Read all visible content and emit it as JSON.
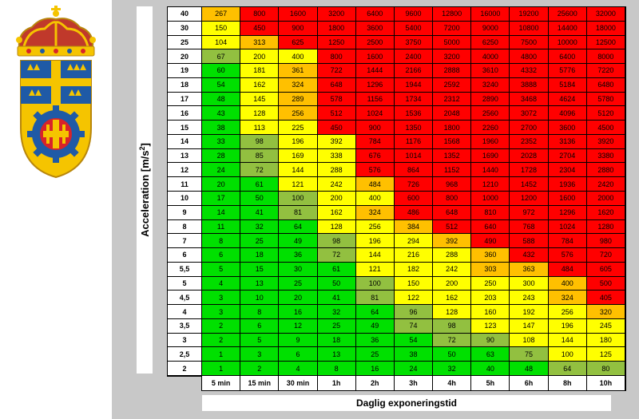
{
  "chart_data": {
    "type": "heatmap",
    "xlabel": "Daglig exponeringstid",
    "ylabel": "Acceleration [m/s",
    "ylabel_sup": "2",
    "ylabel_close": "]",
    "columns": [
      "5 min",
      "15 min",
      "30 min",
      "1h",
      "2h",
      "3h",
      "4h",
      "5h",
      "6h",
      "8h",
      "10h"
    ],
    "rows": [
      {
        "label": "40",
        "values": [
          267,
          800,
          1600,
          3200,
          6400,
          9600,
          12800,
          16000,
          19200,
          25600,
          32000
        ],
        "zones": [
          "O",
          "R",
          "R",
          "R",
          "R",
          "R",
          "R",
          "R",
          "R",
          "R",
          "R"
        ]
      },
      {
        "label": "30",
        "values": [
          150,
          450,
          900,
          1800,
          3600,
          5400,
          7200,
          9000,
          10800,
          14400,
          18000
        ],
        "zones": [
          "Y",
          "R",
          "R",
          "R",
          "R",
          "R",
          "R",
          "R",
          "R",
          "R",
          "R"
        ]
      },
      {
        "label": "25",
        "values": [
          104,
          313,
          625,
          1250,
          2500,
          3750,
          5000,
          6250,
          7500,
          10000,
          12500
        ],
        "zones": [
          "Y",
          "O",
          "R",
          "R",
          "R",
          "R",
          "R",
          "R",
          "R",
          "R",
          "R"
        ]
      },
      {
        "label": "20",
        "values": [
          67,
          200,
          400,
          800,
          1600,
          2400,
          3200,
          4000,
          4800,
          6400,
          8000
        ],
        "zones": [
          "D",
          "Y",
          "Y",
          "R",
          "R",
          "R",
          "R",
          "R",
          "R",
          "R",
          "R"
        ]
      },
      {
        "label": "19",
        "values": [
          60,
          181,
          361,
          722,
          1444,
          2166,
          2888,
          3610,
          4332,
          5776,
          7220
        ],
        "zones": [
          "G",
          "Y",
          "O",
          "R",
          "R",
          "R",
          "R",
          "R",
          "R",
          "R",
          "R"
        ]
      },
      {
        "label": "18",
        "values": [
          54,
          162,
          324,
          648,
          1296,
          1944,
          2592,
          3240,
          3888,
          5184,
          6480
        ],
        "zones": [
          "G",
          "Y",
          "O",
          "R",
          "R",
          "R",
          "R",
          "R",
          "R",
          "R",
          "R"
        ]
      },
      {
        "label": "17",
        "values": [
          48,
          145,
          289,
          578,
          1156,
          1734,
          2312,
          2890,
          3468,
          4624,
          5780
        ],
        "zones": [
          "G",
          "Y",
          "O",
          "R",
          "R",
          "R",
          "R",
          "R",
          "R",
          "R",
          "R"
        ]
      },
      {
        "label": "16",
        "values": [
          43,
          128,
          256,
          512,
          1024,
          1536,
          2048,
          2560,
          3072,
          4096,
          5120
        ],
        "zones": [
          "G",
          "Y",
          "O",
          "R",
          "R",
          "R",
          "R",
          "R",
          "R",
          "R",
          "R"
        ]
      },
      {
        "label": "15",
        "values": [
          38,
          113,
          225,
          450,
          900,
          1350,
          1800,
          2260,
          2700,
          3600,
          4500
        ],
        "zones": [
          "G",
          "Y",
          "Y",
          "R",
          "R",
          "R",
          "R",
          "R",
          "R",
          "R",
          "R"
        ]
      },
      {
        "label": "14",
        "values": [
          33,
          98,
          196,
          392,
          784,
          1176,
          1568,
          1960,
          2352,
          3136,
          3920
        ],
        "zones": [
          "G",
          "D",
          "Y",
          "Y",
          "R",
          "R",
          "R",
          "R",
          "R",
          "R",
          "R"
        ]
      },
      {
        "label": "13",
        "values": [
          28,
          85,
          169,
          338,
          676,
          1014,
          1352,
          1690,
          2028,
          2704,
          3380
        ],
        "zones": [
          "G",
          "D",
          "Y",
          "Y",
          "R",
          "R",
          "R",
          "R",
          "R",
          "R",
          "R"
        ]
      },
      {
        "label": "12",
        "values": [
          24,
          72,
          144,
          288,
          576,
          864,
          1152,
          1440,
          1728,
          2304,
          2880
        ],
        "zones": [
          "G",
          "D",
          "Y",
          "Y",
          "R",
          "R",
          "R",
          "R",
          "R",
          "R",
          "R"
        ]
      },
      {
        "label": "11",
        "values": [
          20,
          61,
          121,
          242,
          484,
          726,
          968,
          1210,
          1452,
          1936,
          2420
        ],
        "zones": [
          "G",
          "G",
          "Y",
          "Y",
          "O",
          "R",
          "R",
          "R",
          "R",
          "R",
          "R"
        ]
      },
      {
        "label": "10",
        "values": [
          17,
          50,
          100,
          200,
          400,
          600,
          800,
          1000,
          1200,
          1600,
          2000
        ],
        "zones": [
          "G",
          "G",
          "D",
          "Y",
          "Y",
          "R",
          "R",
          "R",
          "R",
          "R",
          "R"
        ]
      },
      {
        "label": "9",
        "values": [
          14,
          41,
          81,
          162,
          324,
          486,
          648,
          810,
          972,
          1296,
          1620
        ],
        "zones": [
          "G",
          "G",
          "D",
          "Y",
          "O",
          "R",
          "R",
          "R",
          "R",
          "R",
          "R"
        ]
      },
      {
        "label": "8",
        "values": [
          11,
          32,
          64,
          128,
          256,
          384,
          512,
          640,
          768,
          1024,
          1280
        ],
        "zones": [
          "G",
          "G",
          "G",
          "Y",
          "Y",
          "O",
          "R",
          "R",
          "R",
          "R",
          "R"
        ]
      },
      {
        "label": "7",
        "values": [
          8,
          25,
          49,
          98,
          196,
          294,
          392,
          490,
          588,
          784,
          980
        ],
        "zones": [
          "G",
          "G",
          "G",
          "D",
          "Y",
          "Y",
          "O",
          "R",
          "R",
          "R",
          "R"
        ]
      },
      {
        "label": "6",
        "values": [
          6,
          18,
          36,
          72,
          144,
          216,
          288,
          360,
          432,
          576,
          720
        ],
        "zones": [
          "G",
          "G",
          "G",
          "D",
          "Y",
          "Y",
          "Y",
          "O",
          "R",
          "R",
          "R"
        ]
      },
      {
        "label": "5,5",
        "values": [
          5,
          15,
          30,
          61,
          121,
          182,
          242,
          303,
          363,
          484,
          605
        ],
        "zones": [
          "G",
          "G",
          "G",
          "G",
          "Y",
          "Y",
          "Y",
          "O",
          "O",
          "R",
          "R"
        ]
      },
      {
        "label": "5",
        "values": [
          4,
          13,
          25,
          50,
          100,
          150,
          200,
          250,
          300,
          400,
          500
        ],
        "zones": [
          "G",
          "G",
          "G",
          "G",
          "D",
          "Y",
          "Y",
          "Y",
          "Y",
          "O",
          "R"
        ]
      },
      {
        "label": "4,5",
        "values": [
          3,
          10,
          20,
          41,
          81,
          122,
          162,
          203,
          243,
          324,
          405
        ],
        "zones": [
          "G",
          "G",
          "G",
          "G",
          "D",
          "Y",
          "Y",
          "Y",
          "Y",
          "O",
          "R"
        ]
      },
      {
        "label": "4",
        "values": [
          3,
          8,
          16,
          32,
          64,
          96,
          128,
          160,
          192,
          256,
          320
        ],
        "zones": [
          "G",
          "G",
          "G",
          "G",
          "G",
          "D",
          "Y",
          "Y",
          "Y",
          "Y",
          "O"
        ]
      },
      {
        "label": "3,5",
        "values": [
          2,
          6,
          12,
          25,
          49,
          74,
          98,
          123,
          147,
          196,
          245
        ],
        "zones": [
          "G",
          "G",
          "G",
          "G",
          "G",
          "D",
          "D",
          "Y",
          "Y",
          "Y",
          "Y"
        ]
      },
      {
        "label": "3",
        "values": [
          2,
          5,
          9,
          18,
          36,
          54,
          72,
          90,
          108,
          144,
          180
        ],
        "zones": [
          "G",
          "G",
          "G",
          "G",
          "G",
          "G",
          "D",
          "D",
          "Y",
          "Y",
          "Y"
        ]
      },
      {
        "label": "2,5",
        "values": [
          1,
          3,
          6,
          13,
          25,
          38,
          50,
          63,
          75,
          100,
          125
        ],
        "zones": [
          "G",
          "G",
          "G",
          "G",
          "G",
          "G",
          "G",
          "G",
          "D",
          "Y",
          "Y"
        ]
      },
      {
        "label": "2",
        "values": [
          1,
          2,
          4,
          8,
          16,
          24,
          32,
          40,
          48,
          64,
          80
        ],
        "zones": [
          "G",
          "G",
          "G",
          "G",
          "G",
          "G",
          "G",
          "G",
          "G",
          "D",
          "D"
        ]
      }
    ],
    "zone_colors": {
      "G": "#00e000",
      "D": "#92c040",
      "Y": "#ffff00",
      "O": "#ffc000",
      "R": "#ff0000"
    }
  },
  "logo": {
    "name": "coat-of-arms",
    "colors": {
      "gold": "#f5c400",
      "blue": "#1f5aa6",
      "red": "#d8232a",
      "crown_red": "#c0392b"
    }
  }
}
